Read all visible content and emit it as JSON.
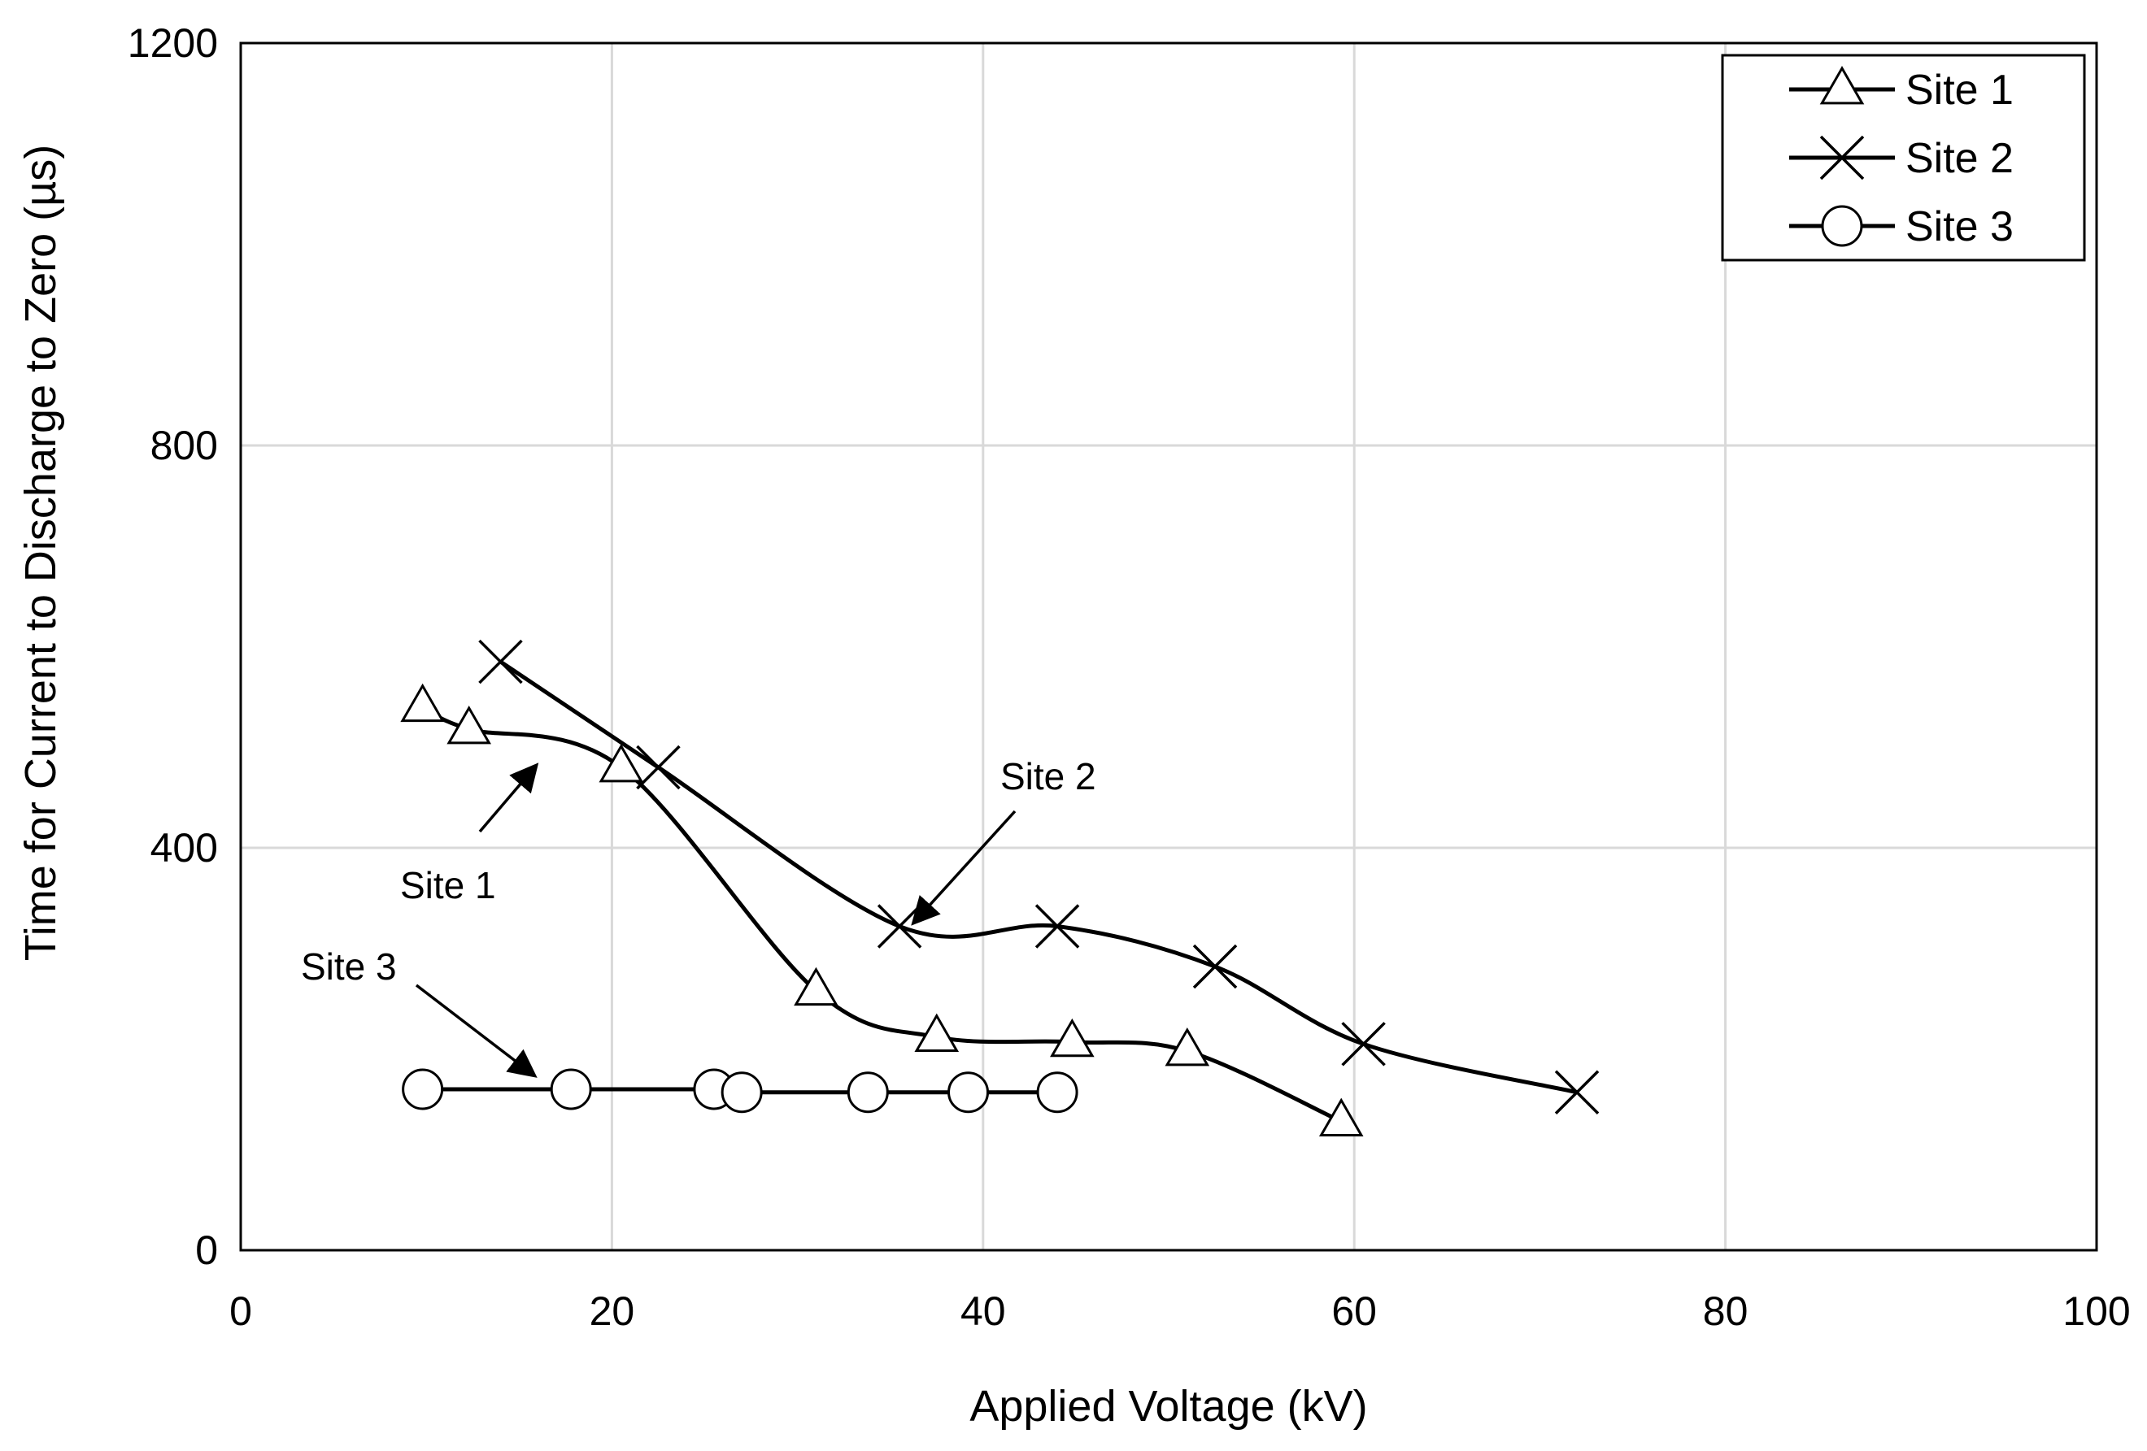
{
  "chart_data": {
    "type": "line",
    "title": "",
    "xlabel": "Applied Voltage (kV)",
    "ylabel": "Time for Current to Discharge to Zero  (µs)",
    "xlim": [
      0,
      100
    ],
    "ylim": [
      0,
      1200
    ],
    "xticks": [
      0,
      20,
      40,
      60,
      80,
      100
    ],
    "yticks": [
      0,
      400,
      800,
      1200
    ],
    "grid": true,
    "legend_position": "top-right",
    "series": [
      {
        "name": "Site 1",
        "marker": "triangle",
        "x": [
          9.8,
          12.3,
          20.5,
          31.0,
          37.5,
          44.8,
          51.0,
          59.3
        ],
        "y": [
          540,
          518,
          480,
          258,
          212,
          207,
          198,
          128
        ]
      },
      {
        "name": "Site 2",
        "marker": "x",
        "x": [
          14.0,
          22.5,
          35.5,
          44.0,
          52.5,
          60.5,
          72.0
        ],
        "y": [
          585,
          480,
          322,
          322,
          282,
          205,
          157
        ]
      },
      {
        "name": "Site 3",
        "marker": "circle",
        "x": [
          9.8,
          17.8,
          25.5,
          27.0,
          33.8,
          39.2,
          44.0
        ],
        "y": [
          160,
          160,
          160,
          157,
          157,
          157,
          157
        ]
      }
    ],
    "annotations": [
      {
        "text": "Site 1",
        "target_series": "Site 1",
        "target": [
          15.5,
          490
        ]
      },
      {
        "text": "Site 2",
        "target_series": "Site 2",
        "target": [
          36.5,
          322
        ]
      },
      {
        "text": "Site 3",
        "target_series": "Site 3",
        "target": [
          16.0,
          170
        ]
      }
    ]
  }
}
